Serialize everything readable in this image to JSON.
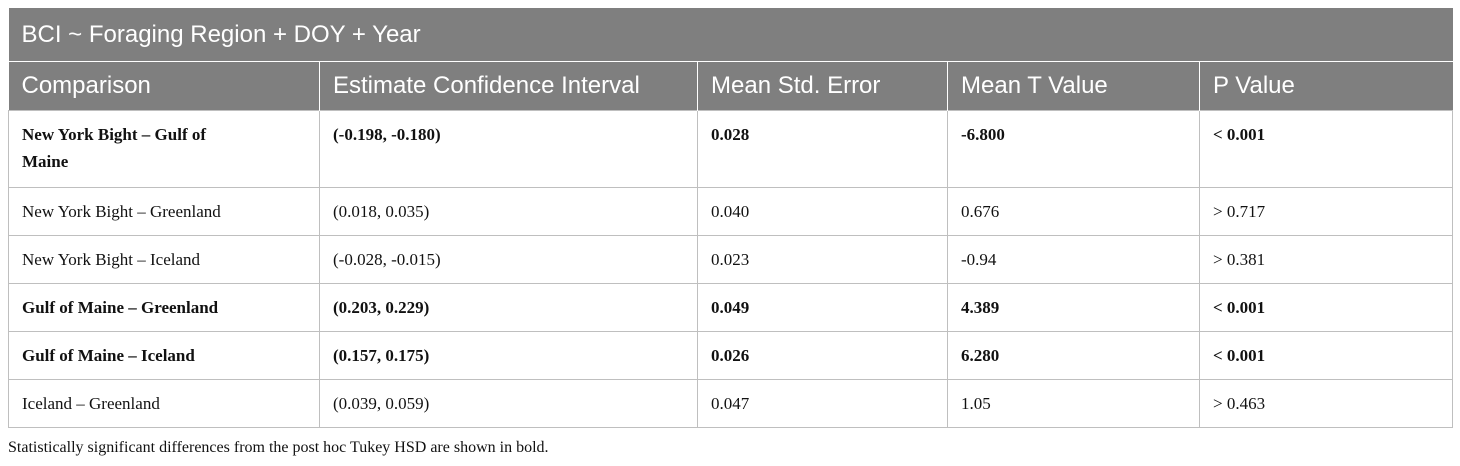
{
  "table": {
    "title": "BCI ~ Foraging Region + DOY + Year",
    "header": [
      "Comparison",
      "Estimate Confidence Interval",
      "Mean Std. Error",
      "Mean T Value",
      "P Value"
    ],
    "rows": [
      {
        "cells": [
          "New York Bight – Gulf of Maine",
          "(-0.198, -0.180)",
          "0.028",
          "-6.800",
          "< 0.001"
        ],
        "bold": true
      },
      {
        "cells": [
          "New York Bight – Greenland",
          "(0.018, 0.035)",
          "0.040",
          "0.676",
          "> 0.717"
        ],
        "bold": false
      },
      {
        "cells": [
          "New York Bight – Iceland",
          "(-0.028, -0.015)",
          "0.023",
          "-0.94",
          "> 0.381"
        ],
        "bold": false
      },
      {
        "cells": [
          "Gulf of Maine – Greenland",
          "(0.203, 0.229)",
          "0.049",
          "4.389",
          "< 0.001"
        ],
        "bold": true
      },
      {
        "cells": [
          "Gulf of Maine – Iceland",
          "(0.157, 0.175)",
          "0.026",
          "6.280",
          "< 0.001"
        ],
        "bold": true
      },
      {
        "cells": [
          "Iceland – Greenland",
          "(0.039, 0.059)",
          "0.047",
          "1.05",
          "> 0.463"
        ],
        "bold": false
      }
    ],
    "footnote": "Statistically significant differences from the post hoc Tukey HSD are shown in bold."
  }
}
